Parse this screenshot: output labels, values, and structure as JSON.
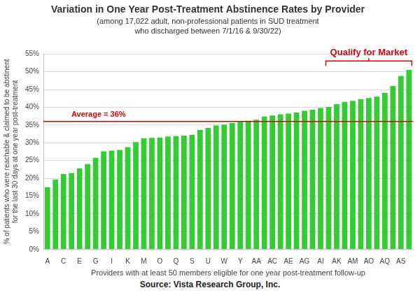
{
  "chart_data": {
    "type": "bar",
    "title": "Variation in One Year Post-Treatment Abstinence Rates by Provider",
    "subtitle": [
      "(among 17,022 adult, non-professional patients in SUD treatment",
      "who discharged between 7/1/16 & 9/30/22)"
    ],
    "x_label": "Providers with at least 50 members eligible for one year post-treatment follow-up",
    "y_label": [
      "% of patients who were reachable & claimed to be abstinent",
      "for the last 30 days at one year post-treatment"
    ],
    "source": "Source: Vista Research Group, Inc.",
    "categories": [
      "A",
      null,
      "C",
      null,
      "E",
      null,
      "G",
      null,
      "I",
      null,
      "K",
      null,
      "M",
      null,
      "O",
      null,
      "Q",
      null,
      "S",
      null,
      "U",
      null,
      "W",
      null,
      "Y",
      null,
      "AA",
      null,
      "AC",
      null,
      "AE",
      null,
      "AG",
      null,
      "AI",
      null,
      "AK",
      null,
      "AM",
      null,
      "AO",
      null,
      "AQ",
      null,
      "AS",
      null
    ],
    "values": [
      17.5,
      19.7,
      21.2,
      21.5,
      22.8,
      24.0,
      25.8,
      27.6,
      27.8,
      28.0,
      28.8,
      30.2,
      31.3,
      31.4,
      31.5,
      31.8,
      31.9,
      32.0,
      32.2,
      33.6,
      34.2,
      34.9,
      35.1,
      35.6,
      35.9,
      36.2,
      36.5,
      37.4,
      37.7,
      38.0,
      38.2,
      38.5,
      39.0,
      39.3,
      39.8,
      40.1,
      40.9,
      41.5,
      41.8,
      42.3,
      42.6,
      43.0,
      44.0,
      46.0,
      48.8,
      50.5
    ],
    "color": "#33cc33",
    "ylim": [
      0,
      55
    ],
    "yticks": [
      {
        "value": 0,
        "label": "0%"
      },
      {
        "value": 5,
        "label": "5%"
      },
      {
        "value": 10,
        "label": "10%"
      },
      {
        "value": 15,
        "label": "15%"
      },
      {
        "value": 20,
        "label": "20%"
      },
      {
        "value": 25,
        "label": "25%"
      },
      {
        "value": 30,
        "label": "30%"
      },
      {
        "value": 35,
        "label": "35%"
      },
      {
        "value": 40,
        "label": "40%"
      },
      {
        "value": 45,
        "label": "45%"
      },
      {
        "value": 50,
        "label": "50%"
      },
      {
        "value": 55,
        "label": "55%"
      }
    ],
    "grid": true,
    "annotations": [
      {
        "type": "hline",
        "value": 36,
        "label": "Average = 36%",
        "color": "#e00000"
      },
      {
        "type": "bracket",
        "from": 35,
        "to": 45,
        "label": "Qualify for Market",
        "color": "#e00000"
      }
    ]
  }
}
